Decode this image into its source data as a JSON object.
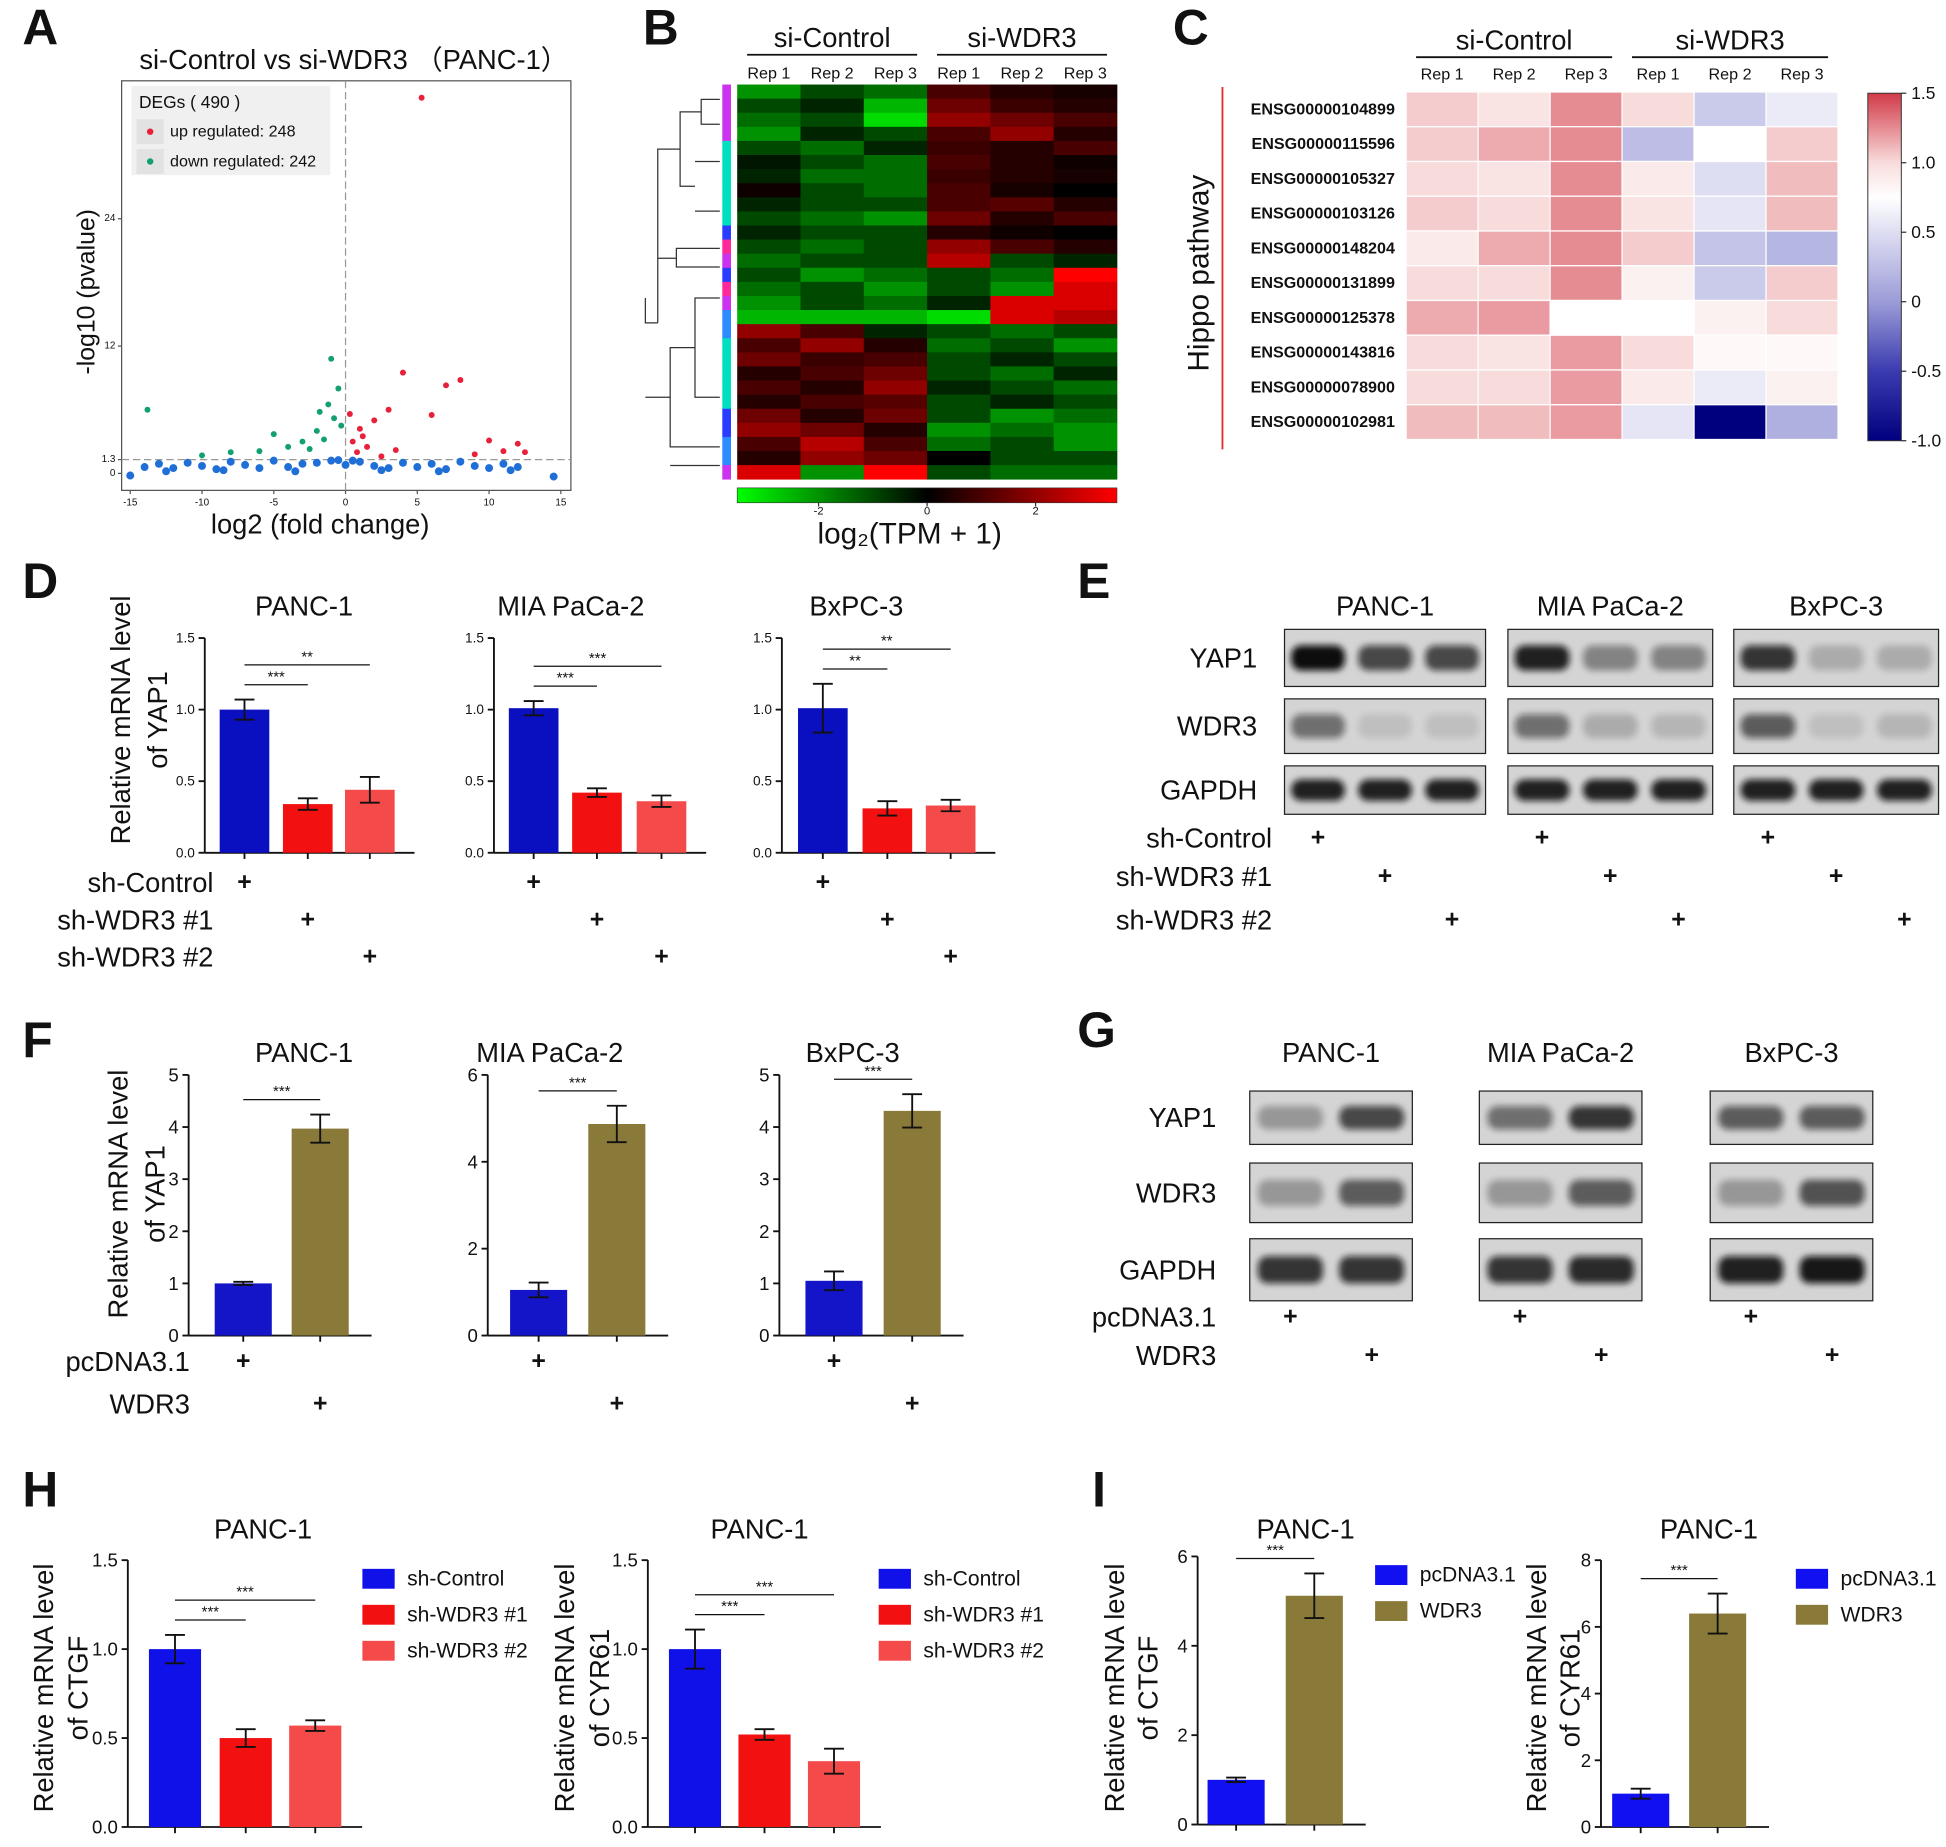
{
  "panel_labels": [
    "A",
    "B",
    "C",
    "D",
    "E",
    "F",
    "G",
    "H",
    "I"
  ],
  "chart_data": [
    {
      "type": "scatter",
      "title": "si-Control vs si-WDR3 （PANC-1）",
      "xlabel": "log2 (fold change)",
      "ylabel": "-log10 (pvalue)",
      "legend_title": "DEGs ( 490 )",
      "legend": "upper left",
      "xlim": [
        -15.6,
        15.7
      ],
      "ylim": [
        -1.6,
        37
      ],
      "xticks": [
        -15,
        -10,
        -5,
        0,
        5,
        10,
        15
      ],
      "yticks": [
        0,
        1.3,
        12,
        24
      ],
      "thresholds": {
        "x": 0,
        "y": 1.3
      },
      "series": [
        {
          "name": "up regulated: 248",
          "color": "#e8203a",
          "x": [
            5.3,
            4.0,
            7.0,
            8.0,
            3.0,
            2.0,
            1.0,
            0.5,
            1.5,
            6.0,
            10.0,
            12.0,
            11.0,
            9.0,
            3.5,
            2.5,
            12.5,
            0.3,
            0.8,
            1.2
          ],
          "values": [
            35.4,
            9.5,
            8.3,
            8.8,
            6.0,
            5.0,
            4.2,
            3.0,
            2.5,
            5.5,
            3.1,
            2.8,
            2.1,
            1.8,
            2.2,
            1.6,
            2.0,
            5.6,
            2.0,
            3.5
          ]
        },
        {
          "name": "down regulated: 242",
          "color": "#12a070",
          "x": [
            -1.0,
            -1.2,
            -0.8,
            -2.0,
            -3.0,
            -5.0,
            -6.0,
            -13.8,
            -0.5,
            -1.5,
            -2.5,
            -8.0,
            -10.0,
            -4.0,
            -1.8,
            -0.3
          ],
          "values": [
            10.8,
            6.5,
            5.2,
            4.0,
            3.0,
            3.7,
            2.1,
            6.0,
            8.0,
            3.2,
            2.3,
            2.0,
            1.7,
            2.5,
            5.8,
            4.5
          ]
        },
        {
          "color": "#1f6fd6",
          "x": [
            -14,
            -13,
            -12,
            -11,
            -10,
            -9,
            -8,
            -7,
            -6,
            -5,
            -4,
            -3,
            -2,
            -1,
            0,
            1,
            2,
            3,
            4,
            5,
            6,
            7,
            8,
            9,
            10,
            11,
            12,
            -12.5,
            -8.5,
            -3.5,
            2.5,
            6.5,
            11.5,
            -15,
            14.5,
            -0.5,
            0.5
          ],
          "values": [
            0.6,
            0.9,
            0.5,
            1.0,
            0.7,
            0.4,
            1.1,
            0.8,
            0.5,
            1.2,
            0.6,
            0.9,
            1.0,
            1.2,
            0.8,
            1.1,
            0.7,
            0.5,
            1.0,
            0.6,
            0.9,
            0.4,
            1.1,
            0.7,
            0.5,
            0.9,
            0.6,
            0.2,
            0.3,
            0.2,
            0.3,
            0.2,
            0.3,
            -0.2,
            -0.3,
            1.25,
            1.2
          ]
        }
      ]
    },
    {
      "type": "heatmap",
      "groups": [
        {
          "name": "si-Control",
          "columns": [
            "Rep 1",
            "Rep 2",
            "Rep 3"
          ]
        },
        {
          "name": "si-WDR3",
          "columns": [
            "Rep 1",
            "Rep 2",
            "Rep 3"
          ]
        }
      ],
      "colorbar_label": "log₂(TPM + 1)",
      "colorbar_ticks": [
        -2,
        0,
        2
      ],
      "colorscale": [
        [
          -3.5,
          "#00ff00"
        ],
        [
          0,
          "#000000"
        ],
        [
          3.5,
          "#ff0000"
        ]
      ],
      "row_colors": [
        "#cc33ee",
        "#cc33ee",
        "#cc33ee",
        "#cc33ee",
        "#00e0c0",
        "#00e0c0",
        "#00e0c0",
        "#00e0c0",
        "#00e0c0",
        "#00e0c0",
        "#2a3cff",
        "#ff2a9a",
        "#cc33ee",
        "#2a3cff",
        "#ff2a9a",
        "#cc33ee",
        "#2a8cff",
        "#2a8cff",
        "#00e0c0",
        "#00e0c0",
        "#00e0c0",
        "#00e0c0",
        "#00e0c0",
        "#2a3cff",
        "#2a3cff",
        "#2a8cff",
        "#2a8cff",
        "#cc33ee"
      ],
      "values": [
        [
          -2,
          -1,
          -1.5,
          1,
          0.5,
          0.3
        ],
        [
          -1,
          -0.5,
          -2.5,
          1.5,
          0.8,
          0.5
        ],
        [
          -1.5,
          -1,
          -3,
          2,
          1.5,
          1
        ],
        [
          -2,
          -0.5,
          -1,
          1,
          2,
          0.5
        ],
        [
          -1,
          -1.5,
          -0.5,
          0.8,
          0.5,
          1
        ],
        [
          -0.3,
          -1,
          -1.5,
          1,
          0.5,
          0.2
        ],
        [
          -0.5,
          -1.5,
          -1.5,
          0.8,
          0.5,
          0.3
        ],
        [
          0.2,
          -1,
          -1.5,
          1,
          0.3,
          0
        ],
        [
          -0.5,
          -1,
          -1,
          1,
          1.2,
          0.5
        ],
        [
          -1,
          -1.5,
          -2,
          1.5,
          0.5,
          1
        ],
        [
          -0.5,
          -1,
          -1,
          0.5,
          0.2,
          0
        ],
        [
          -1,
          -1.5,
          -1,
          2,
          1,
          0.5
        ],
        [
          -1.5,
          -1,
          -1,
          2.5,
          -1,
          -0.5
        ],
        [
          -1,
          -2,
          -1.5,
          -1,
          -1.5,
          3.5
        ],
        [
          -1.5,
          -1,
          -2,
          -1,
          -2,
          3
        ],
        [
          -2,
          -1,
          -1.5,
          -0.5,
          3,
          3
        ],
        [
          -2.5,
          -2.5,
          -2.5,
          -3,
          3,
          2.5
        ],
        [
          2,
          1,
          -0.5,
          -1,
          -1.5,
          -1
        ],
        [
          1,
          2,
          0.5,
          -1.5,
          -1,
          -2
        ],
        [
          1.5,
          0.8,
          1,
          -1,
          -0.5,
          -1
        ],
        [
          0.5,
          1,
          1.5,
          -1,
          -1.5,
          -0.5
        ],
        [
          1,
          0.5,
          2,
          -0.5,
          -1,
          -1.5
        ],
        [
          0.5,
          1,
          1.2,
          -1,
          -0.5,
          -1
        ],
        [
          1.5,
          0.5,
          1.5,
          -1,
          -2,
          -1.5
        ],
        [
          2,
          1.5,
          0.5,
          -2,
          -1.5,
          -2
        ],
        [
          1,
          2.5,
          1,
          -1.5,
          -1,
          -2
        ],
        [
          0.5,
          2,
          1.5,
          0,
          -1,
          -1
        ],
        [
          3,
          -2,
          3.5,
          -1,
          -1.5,
          -1.5
        ]
      ]
    },
    {
      "type": "heatmap",
      "ylabel": "Hippo pathway",
      "groups": [
        {
          "name": "si-Control",
          "columns": [
            "Rep 1",
            "Rep 2",
            "Rep 3"
          ]
        },
        {
          "name": "si-WDR3",
          "columns": [
            "Rep 1",
            "Rep 2",
            "Rep 3"
          ]
        }
      ],
      "rows": [
        "ENSG00000104899",
        "ENSG00000115596",
        "ENSG00000105327",
        "ENSG00000103126",
        "ENSG00000148204",
        "ENSG00000131899",
        "ENSG00000125378",
        "ENSG00000143816",
        "ENSG00000078900",
        "ENSG00000102981"
      ],
      "colorbar_ticks": [
        {
          "value": -1,
          "label": "-1.0"
        },
        -0.5,
        0,
        0.5,
        {
          "value": 1,
          "label": "1.0"
        },
        1.5
      ],
      "colorscale": [
        [
          -1,
          "#00007f"
        ],
        [
          -0.5,
          "#3b3bb0"
        ],
        [
          0,
          "#9c9cd8"
        ],
        [
          0.5,
          "#dedef2"
        ],
        [
          0.75,
          "#ffffff"
        ],
        [
          1.0,
          "#f8dcdc"
        ],
        [
          1.5,
          "#d23a48"
        ]
      ],
      "values": [
        [
          1.05,
          0.95,
          1.25,
          1.0,
          0.35,
          0.6
        ],
        [
          1.05,
          1.15,
          1.25,
          0.25,
          0.75,
          1.05
        ],
        [
          1.0,
          0.95,
          1.25,
          0.9,
          0.5,
          1.1
        ],
        [
          1.05,
          1.0,
          1.25,
          0.95,
          0.55,
          1.1
        ],
        [
          0.9,
          1.15,
          1.25,
          1.05,
          0.3,
          0.2
        ],
        [
          1.0,
          1.0,
          1.25,
          0.85,
          0.35,
          1.05
        ],
        [
          1.15,
          1.2,
          0.75,
          0.75,
          0.85,
          1.0
        ],
        [
          1.0,
          0.95,
          1.2,
          1.0,
          0.8,
          0.8
        ],
        [
          1.0,
          1.0,
          1.2,
          0.9,
          0.6,
          0.85
        ],
        [
          1.1,
          1.1,
          1.2,
          0.55,
          -1.0,
          0.15
        ]
      ]
    },
    {
      "type": "bar",
      "title": "PANC-1",
      "ylabel": [
        "Relative mRNA level",
        "of YAP1"
      ],
      "categories": [
        "sh-Control",
        "sh-WDR3 #1",
        "sh-WDR3 #2"
      ],
      "marker": "+",
      "values": [
        1.0,
        0.34,
        0.44
      ],
      "errors": [
        0.07,
        0.04,
        0.09
      ],
      "significance": [
        null,
        "***",
        "**"
      ],
      "colors": [
        "#0a0fc0",
        "#f21010",
        "#f54a4a"
      ],
      "ylim": [
        0,
        1.5
      ],
      "yticks": [
        {
          "value": 0,
          "label": "0.0"
        },
        0.5,
        {
          "value": 1,
          "label": "1.0"
        },
        1.5
      ]
    },
    {
      "type": "bar",
      "title": "MIA PaCa-2",
      "values": [
        1.01,
        0.42,
        0.36
      ],
      "errors": [
        0.05,
        0.03,
        0.04
      ],
      "significance": [
        null,
        "***",
        "***"
      ],
      "colors": [
        "#0a0fc0",
        "#f21010",
        "#f54a4a"
      ],
      "ylim": [
        0,
        1.5
      ],
      "yticks": [
        {
          "value": 0,
          "label": "0.0"
        },
        0.5,
        {
          "value": 1,
          "label": "1.0"
        },
        1.5
      ]
    },
    {
      "type": "bar",
      "title": "BxPC-3",
      "values": [
        1.01,
        0.31,
        0.33
      ],
      "errors": [
        0.17,
        0.05,
        0.04
      ],
      "significance": [
        null,
        "**",
        "**"
      ],
      "colors": [
        "#0a0fc0",
        "#f21010",
        "#f54a4a"
      ],
      "ylim": [
        0,
        1.5
      ],
      "yticks": [
        {
          "value": 0,
          "label": "0.0"
        },
        0.5,
        {
          "value": 1,
          "label": "1.0"
        },
        1.5
      ]
    },
    {
      "type": "bar",
      "title": "PANC-1",
      "ylabel": [
        "Relative mRNA level",
        "of YAP1"
      ],
      "categories": [
        "pcDNA3.1",
        "WDR3"
      ],
      "marker": "+",
      "values": [
        1.0,
        3.97
      ],
      "errors": [
        0.03,
        0.27
      ],
      "significance": [
        null,
        "***"
      ],
      "colors": [
        "#1414c8",
        "#8a7a3a"
      ],
      "ylim": [
        0,
        5
      ],
      "yticks": [
        0,
        1,
        2,
        3,
        4,
        5
      ]
    },
    {
      "type": "bar",
      "title": "MIA PaCa-2",
      "values": [
        1.05,
        4.87
      ],
      "errors": [
        0.17,
        0.42
      ],
      "significance": [
        null,
        "***"
      ],
      "colors": [
        "#1414c8",
        "#8a7a3a"
      ],
      "ylim": [
        0,
        6
      ],
      "yticks": [
        0,
        2,
        4,
        6
      ]
    },
    {
      "type": "bar",
      "title": "BxPC-3",
      "values": [
        1.05,
        4.31
      ],
      "errors": [
        0.18,
        0.32
      ],
      "significance": [
        null,
        "***"
      ],
      "colors": [
        "#1414c8",
        "#8a7a3a"
      ],
      "ylim": [
        0,
        5
      ],
      "yticks": [
        0,
        1,
        2,
        3,
        4,
        5
      ]
    },
    {
      "type": "bar",
      "title": "PANC-1",
      "ylabel": [
        "Relative mRNA level",
        "of CTGF"
      ],
      "categories": [
        "sh-Control",
        "sh-WDR3 #1",
        "sh-WDR3 #2"
      ],
      "legend": "right",
      "values": [
        1.0,
        0.5,
        0.57
      ],
      "errors": [
        0.08,
        0.05,
        0.03
      ],
      "significance": [
        null,
        "***",
        "***"
      ],
      "colors": [
        "#1010e8",
        "#f21010",
        "#f54a4a"
      ],
      "ylim": [
        0,
        1.5
      ],
      "yticks": [
        {
          "value": 0,
          "label": "0.0"
        },
        0.5,
        {
          "value": 1,
          "label": "1.0"
        },
        1.5
      ]
    },
    {
      "type": "bar",
      "title": "PANC-1",
      "ylabel": [
        "Relative mRNA level",
        "of CYR61"
      ],
      "categories": [
        "sh-Control",
        "sh-WDR3 #1",
        "sh-WDR3 #2"
      ],
      "legend": "right",
      "values": [
        1.0,
        0.52,
        0.37
      ],
      "errors": [
        0.11,
        0.03,
        0.07
      ],
      "significance": [
        null,
        "***",
        "***"
      ],
      "colors": [
        "#1010e8",
        "#f21010",
        "#f54a4a"
      ],
      "ylim": [
        0,
        1.5
      ],
      "yticks": [
        {
          "value": 0,
          "label": "0.0"
        },
        0.5,
        {
          "value": 1,
          "label": "1.0"
        },
        1.5
      ]
    },
    {
      "type": "bar",
      "title": "PANC-1",
      "ylabel": [
        "Relative mRNA level",
        "of CTGF"
      ],
      "categories": [
        "pcDNA3.1",
        "WDR3"
      ],
      "legend": "right",
      "values": [
        1.0,
        5.12
      ],
      "errors": [
        0.05,
        0.5
      ],
      "significance": [
        null,
        "***"
      ],
      "colors": [
        "#1010f0",
        "#8a7a3a"
      ],
      "ylim": [
        0,
        6
      ],
      "yticks": [
        0,
        2,
        4,
        6
      ]
    },
    {
      "type": "bar",
      "title": "PANC-1",
      "ylabel": [
        "Relative mRNA level",
        "of CYR61"
      ],
      "categories": [
        "pcDNA3.1",
        "WDR3"
      ],
      "legend": "right",
      "values": [
        1.0,
        6.4
      ],
      "errors": [
        0.15,
        0.6
      ],
      "significance": [
        null,
        "***"
      ],
      "colors": [
        "#1010f0",
        "#8a7a3a"
      ],
      "ylim": [
        0,
        8
      ],
      "yticks": [
        0,
        2,
        4,
        6,
        8
      ]
    }
  ],
  "blots": [
    {
      "cell_lines": [
        "PANC-1",
        "MIA PaCa-2",
        "BxPC-3"
      ],
      "conditions": [
        "sh-Control",
        "sh-WDR3 #1",
        "sh-WDR3 #2"
      ],
      "marker": "+",
      "proteins": [
        {
          "name": "YAP1",
          "intensity": [
            [
              1,
              0.7,
              0.7
            ],
            [
              0.9,
              0.4,
              0.4
            ],
            [
              0.8,
              0.2,
              0.2
            ]
          ]
        },
        {
          "name": "WDR3",
          "intensity": [
            [
              0.5,
              0.1,
              0.1
            ],
            [
              0.5,
              0.2,
              0.15
            ],
            [
              0.6,
              0.1,
              0.15
            ]
          ]
        },
        {
          "name": "GAPDH",
          "intensity": [
            [
              0.9,
              0.9,
              0.9
            ],
            [
              0.9,
              0.9,
              0.9
            ],
            [
              0.9,
              0.9,
              0.9
            ]
          ]
        }
      ]
    },
    {
      "cell_lines": [
        "PANC-1",
        "MIA PaCa-2",
        "BxPC-3"
      ],
      "conditions": [
        "pcDNA3.1",
        "WDR3"
      ],
      "marker": "+",
      "proteins": [
        {
          "name": "YAP1",
          "intensity": [
            [
              0.3,
              0.7
            ],
            [
              0.5,
              0.8
            ],
            [
              0.6,
              0.6
            ]
          ]
        },
        {
          "name": "WDR3",
          "intensity": [
            [
              0.3,
              0.6
            ],
            [
              0.3,
              0.6
            ],
            [
              0.3,
              0.65
            ]
          ]
        },
        {
          "name": "GAPDH",
          "intensity": [
            [
              0.8,
              0.8
            ],
            [
              0.8,
              0.85
            ],
            [
              0.9,
              0.95
            ]
          ]
        }
      ]
    }
  ]
}
